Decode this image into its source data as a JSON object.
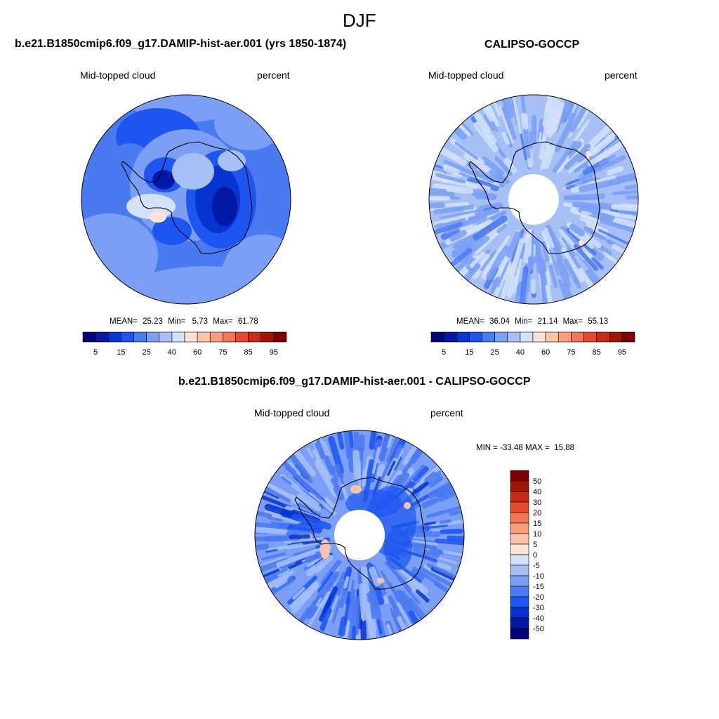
{
  "figure": {
    "title": "DJF"
  },
  "palette": {
    "fill_colors": [
      "#02007c",
      "#0219a6",
      "#0534cf",
      "#1d55f0",
      "#4a7af2",
      "#7b9ff4",
      "#a6c0f6",
      "#d3e2fa",
      "#fde2d6",
      "#fcc2aa",
      "#f99d7e",
      "#f57654",
      "#e8482b",
      "#c82b13",
      "#a11502",
      "#7c0000"
    ],
    "coast_color": "#000000"
  },
  "panels": [
    {
      "id": "model",
      "title": "b.e21.B1850cmip6.f09_g17.DAMIP-hist-aer.001 (yrs 1850-1874)",
      "left_label": "Mid-topped cloud",
      "right_label": "percent",
      "stats": {
        "mean_label": "MEAN=",
        "mean": "25.23",
        "min_label": "Min=",
        "min": "5.73",
        "max_label": "Max=",
        "max": "61.78"
      },
      "colorbar": {
        "orientation": "horizontal",
        "tick_labels": [
          "5",
          "15",
          "25",
          "40",
          "60",
          "75",
          "85",
          "95"
        ]
      },
      "chart_data": {
        "type": "heatmap",
        "projection": "south-polar-stereographic",
        "variable": "Mid-topped cloud",
        "units": "percent",
        "levels": [
          5,
          10,
          15,
          20,
          25,
          30,
          40,
          50,
          60,
          70,
          75,
          80,
          85,
          90,
          95
        ],
        "mean": 25.23,
        "min": 5.73,
        "max": 61.78,
        "polar_data_gap": false
      }
    },
    {
      "id": "obs",
      "title": "CALIPSO-GOCCP",
      "left_label": "Mid-topped cloud",
      "right_label": "percent",
      "stats": {
        "mean_label": "MEAN=",
        "mean": "36.04",
        "min_label": "Min=",
        "min": "21.14",
        "max_label": "Max=",
        "max": "55.13"
      },
      "colorbar": {
        "orientation": "horizontal",
        "tick_labels": [
          "5",
          "15",
          "25",
          "40",
          "60",
          "75",
          "85",
          "95"
        ]
      },
      "chart_data": {
        "type": "heatmap",
        "projection": "south-polar-stereographic",
        "variable": "Mid-topped cloud",
        "units": "percent",
        "levels": [
          5,
          10,
          15,
          20,
          25,
          30,
          40,
          50,
          60,
          70,
          75,
          80,
          85,
          90,
          95
        ],
        "mean": 36.04,
        "min": 21.14,
        "max": 55.13,
        "polar_data_gap": true
      }
    },
    {
      "id": "diff",
      "title": "b.e21.B1850cmip6.f09_g17.DAMIP-hist-aer.001 - CALIPSO-GOCCP",
      "left_label": "Mid-topped cloud",
      "right_label": "percent",
      "minmax_text": "MIN = -33.48 MAX =  15.88",
      "colorbar": {
        "orientation": "vertical",
        "tick_labels": [
          "50",
          "40",
          "30",
          "20",
          "15",
          "10",
          "5",
          "0",
          "-5",
          "-10",
          "-15",
          "-20",
          "-30",
          "-40",
          "-50"
        ]
      },
      "chart_data": {
        "type": "heatmap",
        "projection": "south-polar-stereographic",
        "variable": "Mid-topped cloud",
        "units": "percent",
        "levels": [
          50,
          40,
          30,
          20,
          15,
          10,
          5,
          0,
          -5,
          -10,
          -15,
          -20,
          -30,
          -40,
          -50
        ],
        "min": -33.48,
        "max": 15.88,
        "polar_data_gap": true
      }
    }
  ]
}
